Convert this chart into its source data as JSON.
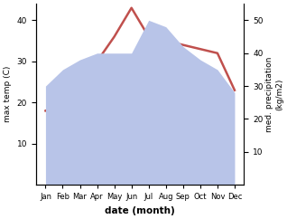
{
  "months": [
    "Jan",
    "Feb",
    "Mar",
    "Apr",
    "May",
    "Jun",
    "Jul",
    "Aug",
    "Sep",
    "Oct",
    "Nov",
    "Dec"
  ],
  "temperature": [
    18,
    20,
    25,
    30,
    36,
    43,
    36,
    35,
    34,
    33,
    32,
    23
  ],
  "rainfall": [
    30,
    35,
    38,
    40,
    40,
    40,
    50,
    48,
    42,
    38,
    35,
    28
  ],
  "temp_color": "#c0504d",
  "rain_fill_color": "#b8c4e8",
  "xlabel": "date (month)",
  "ylabel_left": "max temp (C)",
  "ylabel_right": "med. precipitation\n(kg/m2)",
  "ylim_left": [
    0,
    44
  ],
  "ylim_right": [
    0,
    55
  ],
  "yticks_left": [
    10,
    20,
    30,
    40
  ],
  "yticks_right": [
    10,
    20,
    30,
    40,
    50
  ],
  "background_color": "#ffffff",
  "line_width": 1.8
}
